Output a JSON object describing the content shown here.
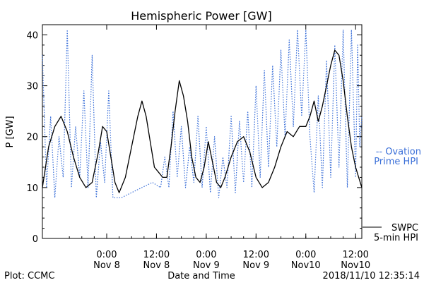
{
  "chart_data": {
    "type": "line",
    "title": "Hemispheric Power [GW]",
    "xlabel": "Date and Time",
    "ylabel": "P [GW]",
    "ylim": [
      0,
      42
    ],
    "yticks": [
      0,
      10,
      20,
      30,
      40
    ],
    "x_ticks": [
      {
        "time": "2018-11-08T00:00",
        "line1": "0:00",
        "line2": "Nov 8"
      },
      {
        "time": "2018-11-08T12:00",
        "line1": "12:00",
        "line2": "Nov 8"
      },
      {
        "time": "2018-11-09T00:00",
        "line1": "0:00",
        "line2": "Nov 9"
      },
      {
        "time": "2018-11-09T12:00",
        "line1": "12:00",
        "line2": "Nov 9"
      },
      {
        "time": "2018-11-10T00:00",
        "line1": "0:00",
        "line2": "Nov10"
      },
      {
        "time": "2018-11-10T12:00",
        "line1": "12:00",
        "line2": "Nov10"
      }
    ],
    "x_range": [
      "2018-11-07T08:30",
      "2018-11-10T13:30"
    ],
    "grid": false,
    "series": [
      {
        "name": "SWPC 5-min HPI",
        "legend_line1": "SWPC",
        "legend_line2": "5-min HPI",
        "style": "solid",
        "color": "#000000",
        "points": [
          [
            "2018-11-07T08:30",
            10
          ],
          [
            "2018-11-07T10:00",
            18
          ],
          [
            "2018-11-07T11:30",
            22
          ],
          [
            "2018-11-07T13:00",
            24
          ],
          [
            "2018-11-07T14:30",
            21
          ],
          [
            "2018-11-07T16:00",
            16
          ],
          [
            "2018-11-07T17:30",
            12
          ],
          [
            "2018-11-07T19:00",
            10
          ],
          [
            "2018-11-07T20:30",
            11
          ],
          [
            "2018-11-07T22:00",
            17
          ],
          [
            "2018-11-07T23:00",
            22
          ],
          [
            "2018-11-08T00:00",
            21
          ],
          [
            "2018-11-08T01:00",
            16
          ],
          [
            "2018-11-08T02:00",
            11
          ],
          [
            "2018-11-08T03:00",
            9
          ],
          [
            "2018-11-08T04:30",
            12
          ],
          [
            "2018-11-08T06:00",
            18
          ],
          [
            "2018-11-08T07:30",
            24
          ],
          [
            "2018-11-08T08:30",
            27
          ],
          [
            "2018-11-08T09:30",
            24
          ],
          [
            "2018-11-08T10:30",
            19
          ],
          [
            "2018-11-08T11:30",
            14
          ],
          [
            "2018-11-08T12:30",
            13
          ],
          [
            "2018-11-08T13:30",
            12
          ],
          [
            "2018-11-08T14:30",
            12
          ],
          [
            "2018-11-08T15:30",
            18
          ],
          [
            "2018-11-08T16:30",
            25
          ],
          [
            "2018-11-08T17:30",
            31
          ],
          [
            "2018-11-08T18:30",
            28
          ],
          [
            "2018-11-08T19:30",
            23
          ],
          [
            "2018-11-08T20:30",
            16
          ],
          [
            "2018-11-08T21:30",
            12
          ],
          [
            "2018-11-08T22:30",
            11
          ],
          [
            "2018-11-08T23:30",
            14
          ],
          [
            "2018-11-09T00:30",
            19
          ],
          [
            "2018-11-09T01:30",
            15
          ],
          [
            "2018-11-09T02:30",
            11
          ],
          [
            "2018-11-09T03:30",
            10
          ],
          [
            "2018-11-09T04:30",
            12
          ],
          [
            "2018-11-09T06:00",
            16
          ],
          [
            "2018-11-09T07:30",
            19
          ],
          [
            "2018-11-09T09:00",
            20
          ],
          [
            "2018-11-09T10:30",
            17
          ],
          [
            "2018-11-09T12:00",
            12
          ],
          [
            "2018-11-09T13:30",
            10
          ],
          [
            "2018-11-09T15:00",
            11
          ],
          [
            "2018-11-09T16:30",
            14
          ],
          [
            "2018-11-09T18:00",
            18
          ],
          [
            "2018-11-09T19:30",
            21
          ],
          [
            "2018-11-09T21:00",
            20
          ],
          [
            "2018-11-09T22:30",
            22
          ],
          [
            "2018-11-10T00:00",
            22
          ],
          [
            "2018-11-10T01:00",
            24
          ],
          [
            "2018-11-10T02:00",
            27
          ],
          [
            "2018-11-10T03:00",
            23
          ],
          [
            "2018-11-10T04:00",
            26
          ],
          [
            "2018-11-10T05:00",
            30
          ],
          [
            "2018-11-10T06:00",
            34
          ],
          [
            "2018-11-10T07:00",
            37
          ],
          [
            "2018-11-10T08:00",
            36
          ],
          [
            "2018-11-10T09:00",
            31
          ],
          [
            "2018-11-10T10:00",
            24
          ],
          [
            "2018-11-10T11:00",
            18
          ],
          [
            "2018-11-10T12:00",
            14
          ],
          [
            "2018-11-10T13:30",
            10
          ]
        ]
      },
      {
        "name": "Ovation Prime HPI",
        "legend_line1": "-- Ovation",
        "legend_line2": "Prime HPI",
        "style": "dotted",
        "color": "#3a6fd8",
        "points": [
          [
            "2018-11-07T08:30",
            36
          ],
          [
            "2018-11-07T09:30",
            10
          ],
          [
            "2018-11-07T10:30",
            24
          ],
          [
            "2018-11-07T11:30",
            8
          ],
          [
            "2018-11-07T12:30",
            20
          ],
          [
            "2018-11-07T13:30",
            12
          ],
          [
            "2018-11-07T14:30",
            41
          ],
          [
            "2018-11-07T15:30",
            10
          ],
          [
            "2018-11-07T16:30",
            22
          ],
          [
            "2018-11-07T17:30",
            12
          ],
          [
            "2018-11-07T18:30",
            29
          ],
          [
            "2018-11-07T19:30",
            10
          ],
          [
            "2018-11-07T20:30",
            36
          ],
          [
            "2018-11-07T21:30",
            8
          ],
          [
            "2018-11-07T22:30",
            19
          ],
          [
            "2018-11-07T23:30",
            11
          ],
          [
            "2018-11-08T00:30",
            29
          ],
          [
            "2018-11-08T01:30",
            8
          ],
          [
            "2018-11-08T03:30",
            8
          ],
          [
            "2018-11-08T11:00",
            11
          ],
          [
            "2018-11-08T13:00",
            10
          ],
          [
            "2018-11-08T14:00",
            16
          ],
          [
            "2018-11-08T15:00",
            10
          ],
          [
            "2018-11-08T16:00",
            25
          ],
          [
            "2018-11-08T17:00",
            12
          ],
          [
            "2018-11-08T18:00",
            22
          ],
          [
            "2018-11-08T19:00",
            10
          ],
          [
            "2018-11-08T20:00",
            18
          ],
          [
            "2018-11-08T21:00",
            11
          ],
          [
            "2018-11-08T22:00",
            24
          ],
          [
            "2018-11-08T23:00",
            10
          ],
          [
            "2018-11-09T00:00",
            22
          ],
          [
            "2018-11-09T01:00",
            9
          ],
          [
            "2018-11-09T02:00",
            20
          ],
          [
            "2018-11-09T03:00",
            8
          ],
          [
            "2018-11-09T04:00",
            16
          ],
          [
            "2018-11-09T05:00",
            10
          ],
          [
            "2018-11-09T06:00",
            24
          ],
          [
            "2018-11-09T07:00",
            9
          ],
          [
            "2018-11-09T08:00",
            23
          ],
          [
            "2018-11-09T09:00",
            11
          ],
          [
            "2018-11-09T10:00",
            25
          ],
          [
            "2018-11-09T11:00",
            10
          ],
          [
            "2018-11-09T12:00",
            30
          ],
          [
            "2018-11-09T13:00",
            12
          ],
          [
            "2018-11-09T14:00",
            33
          ],
          [
            "2018-11-09T15:00",
            14
          ],
          [
            "2018-11-09T16:00",
            34
          ],
          [
            "2018-11-09T17:00",
            18
          ],
          [
            "2018-11-09T18:00",
            37
          ],
          [
            "2018-11-09T19:00",
            20
          ],
          [
            "2018-11-09T20:00",
            39
          ],
          [
            "2018-11-09T21:00",
            22
          ],
          [
            "2018-11-09T22:00",
            41
          ],
          [
            "2018-11-09T23:00",
            24
          ],
          [
            "2018-11-10T00:00",
            41
          ],
          [
            "2018-11-10T01:00",
            20
          ],
          [
            "2018-11-10T02:00",
            9
          ],
          [
            "2018-11-10T03:00",
            28
          ],
          [
            "2018-11-10T04:00",
            10
          ],
          [
            "2018-11-10T05:00",
            35
          ],
          [
            "2018-11-10T06:00",
            12
          ],
          [
            "2018-11-10T07:00",
            38
          ],
          [
            "2018-11-10T08:00",
            14
          ],
          [
            "2018-11-10T09:00",
            41
          ],
          [
            "2018-11-10T10:00",
            10
          ],
          [
            "2018-11-10T11:00",
            41
          ],
          [
            "2018-11-10T12:00",
            12
          ],
          [
            "2018-11-10T12:30",
            38
          ],
          [
            "2018-11-10T13:00",
            18
          ],
          [
            "2018-11-10T13:30",
            24
          ]
        ]
      }
    ]
  },
  "footer": {
    "plot_credit": "Plot: CCMC",
    "timestamp": "2018/11/10 12:35:14"
  }
}
